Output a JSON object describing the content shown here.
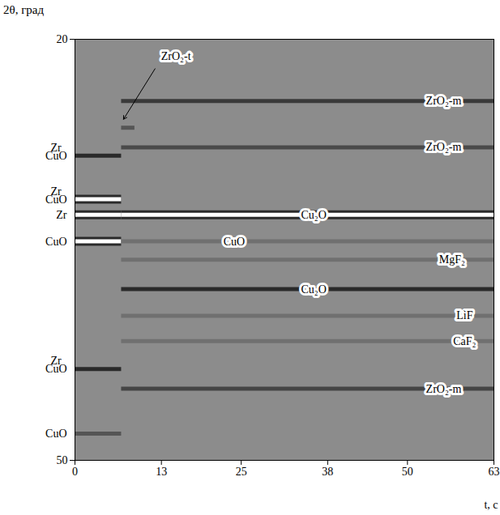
{
  "chart_data": {
    "type": "heatmap",
    "x_label": "t, c",
    "y_label": "2θ, град",
    "xlim": [
      0,
      63
    ],
    "xticks": [
      0,
      13,
      25,
      38,
      50,
      63
    ],
    "ylim": [
      20,
      50
    ],
    "yticks": [
      20,
      50
    ],
    "bands": [
      {
        "y": 28.3,
        "x": [
          0,
          7
        ],
        "color": "#2a2a2a",
        "labels": [
          "CuO",
          "Zr"
        ]
      },
      {
        "y": 31.4,
        "x": [
          0,
          7
        ],
        "color": "#ffffff",
        "labels": [
          "CuO",
          "Zr"
        ]
      },
      {
        "y": 32.5,
        "x": [
          0,
          7
        ],
        "color": "#ffffff",
        "labels": [
          "Zr"
        ]
      },
      {
        "y": 34.4,
        "x": [
          0,
          7
        ],
        "color": "#ffffff",
        "labels": [
          "CuO"
        ]
      },
      {
        "y": 43.5,
        "x": [
          0,
          7
        ],
        "color": "#2a2a2a",
        "labels": [
          "CuO",
          "Zr"
        ]
      },
      {
        "y": 48.1,
        "x": [
          0,
          7
        ],
        "color": "#555555",
        "labels": [
          "CuO"
        ]
      },
      {
        "y": 24.4,
        "x": [
          7,
          63
        ],
        "color": "#3a3a3a",
        "label": "ZrO₂-m"
      },
      {
        "y": 26.3,
        "x": [
          7,
          9
        ],
        "color": "#555555",
        "label": "ZrO₂-t"
      },
      {
        "y": 27.7,
        "x": [
          7,
          63
        ],
        "color": "#4a4a4a",
        "label": "ZrO₂-m"
      },
      {
        "y": 32.5,
        "x": [
          7,
          63
        ],
        "color": "#ffffff",
        "label": "Cu₂O"
      },
      {
        "y": 34.4,
        "x": [
          7,
          63
        ],
        "color": "#707070",
        "label": "CuO"
      },
      {
        "y": 35.7,
        "x": [
          7,
          63
        ],
        "color": "#707070",
        "label": "MgF₂"
      },
      {
        "y": 37.8,
        "x": [
          7,
          63
        ],
        "color": "#2a2a2a",
        "label": "Cu₂O"
      },
      {
        "y": 39.7,
        "x": [
          7,
          63
        ],
        "color": "#707070",
        "label": "LiF"
      },
      {
        "y": 41.5,
        "x": [
          7,
          63
        ],
        "color": "#707070",
        "label": "CaF₂"
      },
      {
        "y": 44.9,
        "x": [
          7,
          63
        ],
        "color": "#454545",
        "label": "ZrO₂-m"
      }
    ]
  }
}
